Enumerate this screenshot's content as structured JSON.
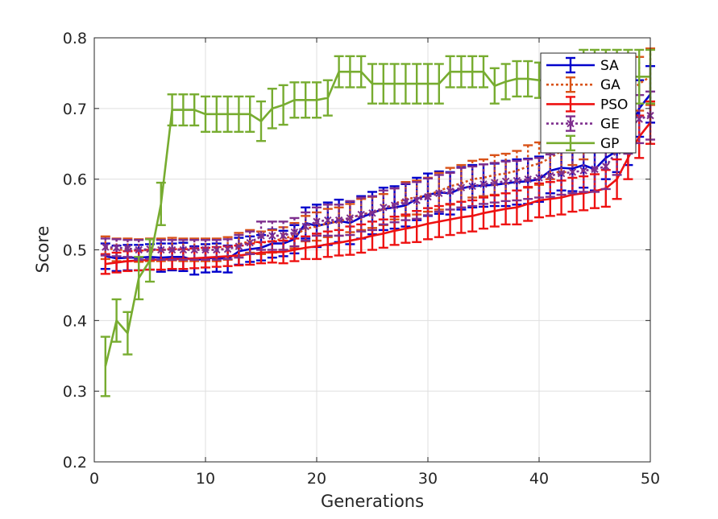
{
  "chart_data": {
    "type": "line",
    "xlabel": "Generations",
    "ylabel": "Score",
    "xlim": [
      0,
      50
    ],
    "ylim": [
      0.2,
      0.8
    ],
    "xticks": [
      0,
      10,
      20,
      30,
      40,
      50
    ],
    "yticks": [
      0.2,
      0.3,
      0.4,
      0.5,
      0.6,
      0.7,
      0.8
    ],
    "xtick_labels": [
      "0",
      "10",
      "20",
      "30",
      "40",
      "50"
    ],
    "ytick_labels": [
      "0.2",
      "0.3",
      "0.4",
      "0.5",
      "0.6",
      "0.7",
      "0.8"
    ],
    "grid": true,
    "error_bars": true,
    "legend_position": "top-right",
    "x": [
      1,
      2,
      3,
      4,
      5,
      6,
      7,
      8,
      9,
      10,
      11,
      12,
      13,
      14,
      15,
      16,
      17,
      18,
      19,
      20,
      21,
      22,
      23,
      24,
      25,
      26,
      27,
      28,
      29,
      30,
      31,
      32,
      33,
      34,
      35,
      36,
      37,
      38,
      39,
      40,
      41,
      42,
      43,
      44,
      45,
      46,
      47,
      48,
      49,
      50
    ],
    "series": [
      {
        "name": "SA",
        "color": "#0000cc",
        "line_style": "solid",
        "marker": "none",
        "values": [
          0.491,
          0.488,
          0.489,
          0.489,
          0.49,
          0.489,
          0.49,
          0.49,
          0.485,
          0.488,
          0.489,
          0.487,
          0.498,
          0.501,
          0.503,
          0.509,
          0.509,
          0.515,
          0.538,
          0.534,
          0.537,
          0.541,
          0.538,
          0.546,
          0.552,
          0.558,
          0.56,
          0.563,
          0.572,
          0.578,
          0.581,
          0.58,
          0.587,
          0.59,
          0.591,
          0.592,
          0.594,
          0.596,
          0.597,
          0.6,
          0.612,
          0.616,
          0.615,
          0.62,
          0.614,
          0.63,
          0.64,
          0.66,
          0.7,
          0.72
        ],
        "errors": [
          0.018,
          0.018,
          0.018,
          0.018,
          0.018,
          0.02,
          0.019,
          0.02,
          0.02,
          0.02,
          0.02,
          0.019,
          0.019,
          0.018,
          0.018,
          0.02,
          0.018,
          0.02,
          0.022,
          0.03,
          0.03,
          0.03,
          0.03,
          0.03,
          0.03,
          0.03,
          0.03,
          0.03,
          0.03,
          0.03,
          0.03,
          0.03,
          0.03,
          0.03,
          0.03,
          0.03,
          0.032,
          0.032,
          0.032,
          0.032,
          0.032,
          0.032,
          0.032,
          0.032,
          0.03,
          0.03,
          0.03,
          0.04,
          0.04,
          0.04
        ]
      },
      {
        "name": "GA",
        "color": "#d95319",
        "line_style": "dotted",
        "marker": "none",
        "values": [
          0.503,
          0.5,
          0.5,
          0.499,
          0.5,
          0.5,
          0.501,
          0.5,
          0.5,
          0.5,
          0.5,
          0.502,
          0.508,
          0.512,
          0.51,
          0.512,
          0.516,
          0.52,
          0.53,
          0.533,
          0.538,
          0.54,
          0.545,
          0.55,
          0.553,
          0.557,
          0.565,
          0.572,
          0.574,
          0.578,
          0.583,
          0.59,
          0.594,
          0.6,
          0.602,
          0.606,
          0.608,
          0.612,
          0.618,
          0.622,
          0.63,
          0.64,
          0.65,
          0.66,
          0.67,
          0.68,
          0.7,
          0.72,
          0.735,
          0.745
        ],
        "errors": [
          0.016,
          0.016,
          0.016,
          0.016,
          0.016,
          0.016,
          0.016,
          0.016,
          0.016,
          0.016,
          0.016,
          0.016,
          0.016,
          0.016,
          0.016,
          0.016,
          0.016,
          0.018,
          0.018,
          0.02,
          0.02,
          0.02,
          0.02,
          0.022,
          0.022,
          0.022,
          0.022,
          0.024,
          0.024,
          0.024,
          0.026,
          0.026,
          0.026,
          0.026,
          0.026,
          0.028,
          0.028,
          0.028,
          0.03,
          0.03,
          0.03,
          0.03,
          0.03,
          0.032,
          0.032,
          0.032,
          0.034,
          0.036,
          0.038,
          0.04
        ]
      },
      {
        "name": "PSO",
        "color": "#ee1111",
        "line_style": "solid",
        "marker": "none",
        "values": [
          0.48,
          0.482,
          0.484,
          0.485,
          0.486,
          0.486,
          0.487,
          0.487,
          0.488,
          0.489,
          0.49,
          0.491,
          0.492,
          0.494,
          0.496,
          0.497,
          0.497,
          0.5,
          0.503,
          0.505,
          0.508,
          0.51,
          0.513,
          0.516,
          0.52,
          0.523,
          0.527,
          0.53,
          0.533,
          0.537,
          0.54,
          0.543,
          0.546,
          0.548,
          0.552,
          0.555,
          0.558,
          0.56,
          0.565,
          0.57,
          0.572,
          0.574,
          0.578,
          0.58,
          0.583,
          0.587,
          0.6,
          0.63,
          0.66,
          0.68
        ],
        "errors": [
          0.014,
          0.014,
          0.014,
          0.014,
          0.014,
          0.014,
          0.014,
          0.014,
          0.014,
          0.014,
          0.014,
          0.014,
          0.014,
          0.015,
          0.015,
          0.015,
          0.016,
          0.016,
          0.016,
          0.018,
          0.018,
          0.018,
          0.02,
          0.02,
          0.02,
          0.02,
          0.02,
          0.02,
          0.022,
          0.022,
          0.022,
          0.022,
          0.022,
          0.022,
          0.022,
          0.022,
          0.022,
          0.024,
          0.024,
          0.024,
          0.024,
          0.024,
          0.024,
          0.024,
          0.024,
          0.026,
          0.028,
          0.03,
          0.03,
          0.03
        ]
      },
      {
        "name": "GE",
        "color": "#7e2f8e",
        "line_style": "dotted",
        "marker": "x",
        "values": [
          0.504,
          0.503,
          0.502,
          0.5,
          0.501,
          0.5,
          0.5,
          0.5,
          0.5,
          0.5,
          0.5,
          0.501,
          0.505,
          0.51,
          0.52,
          0.52,
          0.52,
          0.525,
          0.533,
          0.54,
          0.542,
          0.542,
          0.545,
          0.55,
          0.552,
          0.56,
          0.563,
          0.568,
          0.57,
          0.575,
          0.58,
          0.583,
          0.588,
          0.59,
          0.593,
          0.595,
          0.597,
          0.598,
          0.6,
          0.602,
          0.605,
          0.608,
          0.61,
          0.612,
          0.614,
          0.618,
          0.64,
          0.67,
          0.685,
          0.69
        ],
        "errors": [
          0.012,
          0.012,
          0.012,
          0.014,
          0.014,
          0.014,
          0.014,
          0.014,
          0.014,
          0.014,
          0.014,
          0.014,
          0.016,
          0.016,
          0.02,
          0.02,
          0.02,
          0.02,
          0.02,
          0.02,
          0.022,
          0.022,
          0.024,
          0.024,
          0.024,
          0.024,
          0.024,
          0.026,
          0.026,
          0.026,
          0.026,
          0.026,
          0.028,
          0.028,
          0.028,
          0.028,
          0.028,
          0.028,
          0.028,
          0.028,
          0.03,
          0.03,
          0.03,
          0.03,
          0.032,
          0.032,
          0.034,
          0.034,
          0.034,
          0.034
        ]
      },
      {
        "name": "GP",
        "color": "#77ac30",
        "line_style": "solid",
        "marker": "none",
        "values": [
          0.335,
          0.4,
          0.382,
          0.46,
          0.485,
          0.565,
          0.698,
          0.698,
          0.698,
          0.692,
          0.692,
          0.692,
          0.692,
          0.692,
          0.682,
          0.7,
          0.705,
          0.712,
          0.712,
          0.712,
          0.715,
          0.752,
          0.752,
          0.752,
          0.735,
          0.735,
          0.735,
          0.735,
          0.735,
          0.735,
          0.735,
          0.752,
          0.752,
          0.752,
          0.752,
          0.732,
          0.738,
          0.742,
          0.742,
          0.74,
          0.74,
          0.742,
          0.742,
          0.745,
          0.745,
          0.745,
          0.745,
          0.745,
          0.745,
          0.745
        ],
        "errors": [
          0.042,
          0.03,
          0.03,
          0.03,
          0.03,
          0.03,
          0.022,
          0.022,
          0.022,
          0.025,
          0.025,
          0.025,
          0.025,
          0.025,
          0.028,
          0.028,
          0.028,
          0.025,
          0.025,
          0.025,
          0.025,
          0.022,
          0.022,
          0.022,
          0.028,
          0.028,
          0.028,
          0.028,
          0.028,
          0.028,
          0.028,
          0.022,
          0.022,
          0.022,
          0.022,
          0.025,
          0.025,
          0.025,
          0.025,
          0.025,
          0.025,
          0.028,
          0.028,
          0.038,
          0.038,
          0.038,
          0.038,
          0.038,
          0.038,
          0.038
        ]
      }
    ]
  }
}
